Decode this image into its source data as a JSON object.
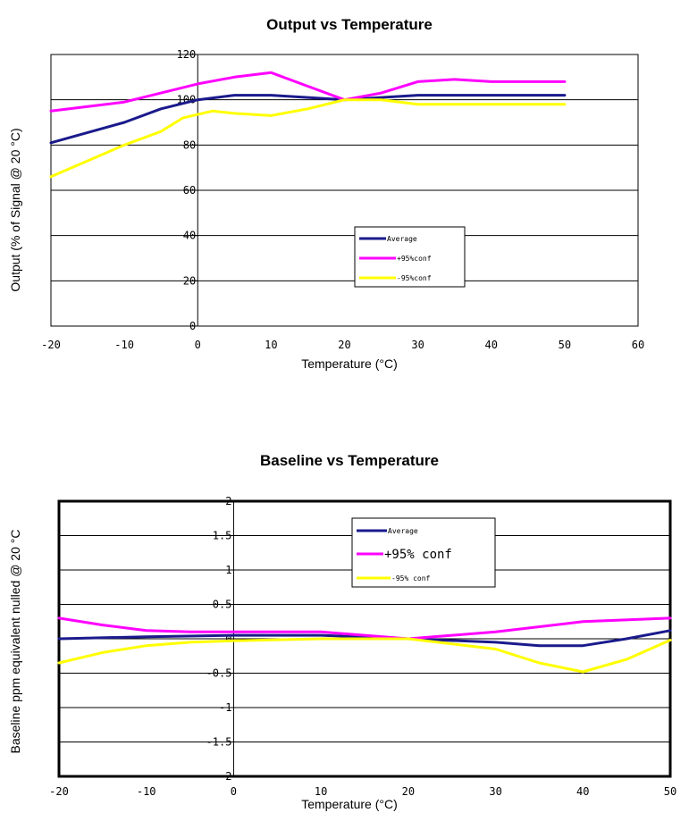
{
  "chart_data": [
    {
      "type": "line",
      "title": "Output vs Temperature",
      "xlabel": "Temperature (°C)",
      "ylabel": "Output (% of Signal @ 20 °C)",
      "xlim": [
        -20,
        60
      ],
      "ylim": [
        0,
        120
      ],
      "xticks": [
        -20,
        -10,
        0,
        10,
        20,
        30,
        40,
        50,
        60
      ],
      "yticks": [
        0,
        20,
        40,
        60,
        80,
        100,
        120
      ],
      "grid": true,
      "legend_position": "center-right",
      "series": [
        {
          "name": "Average",
          "color": "#1a1a8c",
          "x": [
            -20,
            -10,
            -5,
            0,
            5,
            10,
            15,
            20,
            25,
            30,
            40,
            50
          ],
          "y": [
            81,
            90,
            96,
            100,
            102,
            102,
            101,
            100,
            101,
            102,
            102,
            102
          ]
        },
        {
          "name": "+95%conf",
          "color": "#ff00ff",
          "x": [
            -20,
            -15,
            -10,
            -5,
            0,
            5,
            10,
            15,
            20,
            25,
            30,
            35,
            40,
            50
          ],
          "y": [
            95,
            97,
            99,
            103,
            107,
            110,
            112,
            106,
            100,
            103,
            108,
            109,
            108,
            108
          ]
        },
        {
          "name": "-95%conf",
          "color": "#ffff00",
          "x": [
            -20,
            -10,
            -5,
            -2,
            2,
            5,
            10,
            15,
            20,
            25,
            30,
            40,
            50
          ],
          "y": [
            66,
            80,
            86,
            92,
            95,
            94,
            93,
            96,
            100,
            100,
            98,
            98,
            98
          ]
        }
      ]
    },
    {
      "type": "line",
      "title": "Baseline vs Temperature",
      "xlabel": "Temperature (°C)",
      "ylabel": "Baseline ppm equivalent nulled @ 20 °C",
      "xlim": [
        -20,
        50
      ],
      "ylim": [
        -2,
        2
      ],
      "xticks": [
        -20,
        -10,
        0,
        10,
        20,
        30,
        40,
        50
      ],
      "yticks": [
        -2,
        -1.5,
        -1,
        -0.5,
        0,
        0.5,
        1,
        1.5,
        2
      ],
      "ytick_labels": [
        "-2",
        "-1.5",
        "-1",
        "-0.5",
        "0",
        "0.5",
        "1",
        "1.5",
        "2"
      ],
      "grid": true,
      "legend_position": "top-right",
      "series": [
        {
          "name": "Average",
          "color": "#1a1a8c",
          "x": [
            -20,
            -10,
            0,
            10,
            20,
            30,
            35,
            40,
            45,
            50
          ],
          "y": [
            0,
            0.03,
            0.05,
            0.05,
            0,
            -0.05,
            -0.1,
            -0.1,
            0,
            0.12
          ]
        },
        {
          "name": "+95% conf",
          "color": "#ff00ff",
          "x": [
            -20,
            -15,
            -10,
            -5,
            0,
            10,
            20,
            30,
            40,
            50
          ],
          "y": [
            0.3,
            0.2,
            0.12,
            0.1,
            0.1,
            0.1,
            0,
            0.1,
            0.25,
            0.3
          ]
        },
        {
          "name": "-95% conf",
          "color": "#ffff00",
          "x": [
            -20,
            -15,
            -10,
            -5,
            0,
            10,
            20,
            30,
            35,
            40,
            45,
            50
          ],
          "y": [
            -0.35,
            -0.2,
            -0.1,
            -0.05,
            -0.03,
            0,
            0,
            -0.15,
            -0.35,
            -0.48,
            -0.3,
            -0.02
          ]
        }
      ]
    }
  ]
}
